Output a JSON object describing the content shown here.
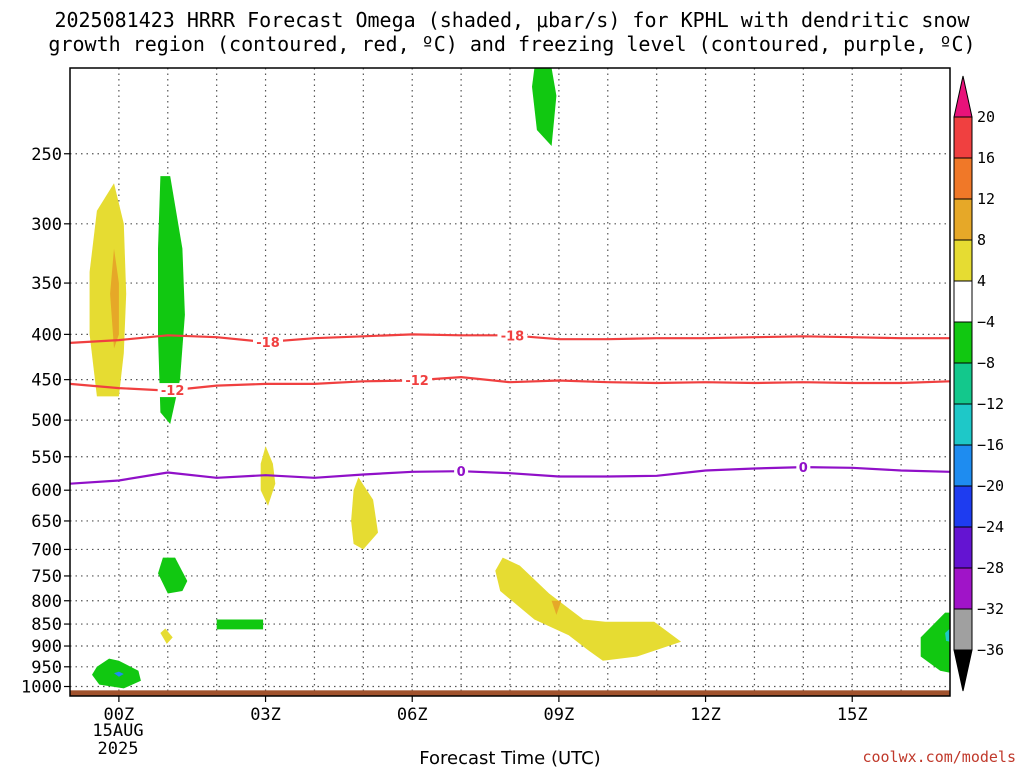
{
  "chart_data": {
    "type": "heatmap",
    "title_line1": "2025081423 HRRR Forecast Omega (shaded, μbar/s) for KPHL with dendritic snow",
    "title_line2": "growth region (contoured, red, ºC) and freezing level (contoured, purple, ºC)",
    "xlabel": "Forecast Time (UTC)",
    "x_ticks": [
      {
        "hour": 0,
        "label": "00Z"
      },
      {
        "hour": 3,
        "label": "03Z"
      },
      {
        "hour": 6,
        "label": "06Z"
      },
      {
        "hour": 9,
        "label": "09Z"
      },
      {
        "hour": 12,
        "label": "12Z"
      },
      {
        "hour": 15,
        "label": "15Z"
      }
    ],
    "x_date_label": [
      "15AUG",
      "2025"
    ],
    "xlim": [
      -1,
      17
    ],
    "y_axis": {
      "scale": "log-pressure",
      "units": "hPa",
      "ylim": [
        1025,
        200
      ],
      "inverted": true
    },
    "y_ticks": [
      250,
      300,
      350,
      400,
      450,
      500,
      550,
      600,
      650,
      700,
      750,
      800,
      850,
      900,
      950,
      1000
    ],
    "grid": true,
    "colorbar": {
      "labels": [
        "20",
        "16",
        "12",
        "8",
        "4",
        "−4",
        "−8",
        "−12",
        "−16",
        "−20",
        "−24",
        "−28",
        "−32",
        "−36"
      ],
      "colors_top_to_bottom": [
        "#e8127a",
        "#f04040",
        "#f07828",
        "#e6a828",
        "#e6dc32",
        "#ffffff",
        "#11c811",
        "#13c88c",
        "#1ec8c8",
        "#1e8cf0",
        "#1e3cf0",
        "#6414d2",
        "#a014c8",
        "#a0a0a0",
        "#000000"
      ]
    },
    "omega_regions": [
      {
        "value": 6,
        "color": "#e6dc32",
        "points": [
          [
            -0.45,
            470
          ],
          [
            -0.6,
            400
          ],
          [
            -0.6,
            340
          ],
          [
            -0.45,
            290
          ],
          [
            -0.1,
            270
          ],
          [
            0.1,
            300
          ],
          [
            0.15,
            360
          ],
          [
            0.1,
            420
          ],
          [
            0,
            470
          ]
        ]
      },
      {
        "value": 10,
        "color": "#e6a828",
        "points": [
          [
            -0.1,
            415
          ],
          [
            -0.18,
            360
          ],
          [
            -0.1,
            320
          ],
          [
            0,
            350
          ],
          [
            0,
            400
          ]
        ]
      },
      {
        "value": -6,
        "color": "#11c811",
        "points": [
          [
            0.85,
            490
          ],
          [
            0.8,
            400
          ],
          [
            0.8,
            320
          ],
          [
            0.85,
            265
          ],
          [
            1.05,
            265
          ],
          [
            1.3,
            320
          ],
          [
            1.35,
            380
          ],
          [
            1.25,
            450
          ],
          [
            1.05,
            505
          ]
        ]
      },
      {
        "value": 6,
        "color": "#e6dc32",
        "points": [
          [
            2.9,
            560
          ],
          [
            3.0,
            535
          ],
          [
            3.15,
            560
          ],
          [
            3.2,
            590
          ],
          [
            3.05,
            625
          ],
          [
            2.9,
            600
          ]
        ]
      },
      {
        "value": 6,
        "color": "#e6dc32",
        "points": [
          [
            4.75,
            650
          ],
          [
            4.8,
            600
          ],
          [
            4.9,
            580
          ],
          [
            5.2,
            615
          ],
          [
            5.3,
            670
          ],
          [
            5.0,
            700
          ],
          [
            4.8,
            690
          ]
        ]
      },
      {
        "value": -6,
        "color": "#11c811",
        "points": [
          [
            8.5,
            200
          ],
          [
            8.85,
            200
          ],
          [
            8.95,
            215
          ],
          [
            8.85,
            245
          ],
          [
            8.55,
            235
          ],
          [
            8.45,
            210
          ]
        ]
      },
      {
        "value": -6,
        "color": "#11c811",
        "points": [
          [
            0.8,
            745
          ],
          [
            0.9,
            715
          ],
          [
            1.15,
            715
          ],
          [
            1.4,
            760
          ],
          [
            1.3,
            780
          ],
          [
            1.0,
            785
          ]
        ]
      },
      {
        "value": 6,
        "color": "#e6dc32",
        "points": [
          [
            0.85,
            870
          ],
          [
            0.95,
            860
          ],
          [
            1.1,
            880
          ],
          [
            0.98,
            895
          ]
        ]
      },
      {
        "value": -6,
        "color": "#11c811",
        "points": [
          [
            2.0,
            840
          ],
          [
            2.95,
            840
          ],
          [
            2.95,
            862
          ],
          [
            2.0,
            862
          ]
        ]
      },
      {
        "value": -6,
        "color": "#11c811",
        "points": [
          [
            -0.55,
            970
          ],
          [
            -0.45,
            950
          ],
          [
            -0.2,
            930
          ],
          [
            0,
            935
          ],
          [
            0.4,
            960
          ],
          [
            0.45,
            985
          ],
          [
            0.1,
            1005
          ],
          [
            -0.4,
            995
          ]
        ]
      },
      {
        "value": -18,
        "color": "#1e8cf0",
        "points": [
          [
            -0.1,
            966
          ],
          [
            0,
            962
          ],
          [
            0.1,
            968
          ],
          [
            0,
            975
          ]
        ]
      },
      {
        "value": 6,
        "color": "#e6dc32",
        "points": [
          [
            7.7,
            740
          ],
          [
            7.85,
            715
          ],
          [
            8.2,
            730
          ],
          [
            8.8,
            785
          ],
          [
            9.5,
            840
          ],
          [
            9.95,
            845
          ],
          [
            10.95,
            845
          ],
          [
            11.5,
            890
          ],
          [
            10.6,
            925
          ],
          [
            9.9,
            935
          ],
          [
            9.6,
            910
          ],
          [
            9.2,
            875
          ],
          [
            8.5,
            840
          ],
          [
            7.8,
            780
          ]
        ]
      },
      {
        "value": 10,
        "color": "#e6a828",
        "points": [
          [
            8.85,
            800
          ],
          [
            9.05,
            800
          ],
          [
            8.95,
            830
          ]
        ]
      },
      {
        "value": -6,
        "color": "#11c811",
        "points": [
          [
            16.4,
            880
          ],
          [
            16.9,
            825
          ],
          [
            17.0,
            825
          ],
          [
            17.0,
            965
          ],
          [
            16.8,
            960
          ],
          [
            16.4,
            925
          ]
        ]
      },
      {
        "value": -12,
        "color": "#1ec8c8",
        "points": [
          [
            16.9,
            870
          ],
          [
            17.0,
            860
          ],
          [
            17.0,
            890
          ],
          [
            16.92,
            888
          ]
        ]
      }
    ],
    "contours": [
      {
        "name": "-18",
        "color": "#f04040",
        "label_hours": [
          3.05,
          8.05
        ],
        "hours": [
          -1,
          0,
          1,
          2,
          3,
          4,
          5,
          6,
          7,
          8,
          9,
          10,
          11,
          12,
          13,
          14,
          15,
          16,
          17
        ],
        "pressure": [
          409,
          406,
          401,
          403,
          408,
          404,
          402,
          400,
          401,
          401,
          405,
          405,
          404,
          404,
          403,
          402,
          403,
          404,
          404
        ]
      },
      {
        "name": "-12",
        "color": "#f04040",
        "label_hours": [
          1.1,
          6.1
        ],
        "hours": [
          -1,
          0,
          1,
          2,
          3,
          4,
          5,
          6,
          7,
          8,
          9,
          10,
          11,
          12,
          13,
          14,
          15,
          16,
          17
        ],
        "pressure": [
          455,
          460,
          463,
          457,
          455,
          455,
          452,
          451,
          447,
          453,
          451,
          453,
          454,
          453,
          454,
          453,
          454,
          454,
          452
        ]
      },
      {
        "name": "0",
        "color": "#9010c8",
        "label_hours": [
          7.0,
          14.0
        ],
        "hours": [
          -1,
          0,
          1,
          2,
          3,
          4,
          5,
          6,
          7,
          8,
          9,
          10,
          11,
          12,
          13,
          14,
          15,
          16,
          17
        ],
        "pressure": [
          590,
          585,
          573,
          581,
          577,
          581,
          576,
          572,
          571,
          574,
          579,
          579,
          578,
          570,
          567,
          565,
          566,
          570,
          572
        ]
      }
    ],
    "ground": {
      "color": "#a0522d"
    }
  },
  "credit": "coolwx.com/models"
}
